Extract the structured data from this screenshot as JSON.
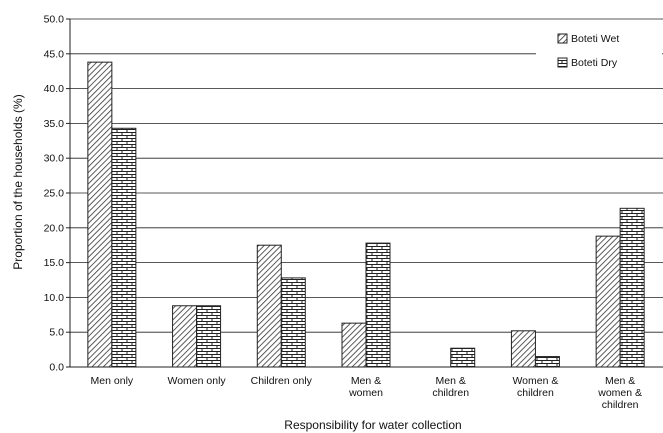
{
  "chart_data": {
    "type": "bar",
    "xlabel": "Responsibility for water collection",
    "ylabel": "Proportion of the households (%)",
    "ylim": [
      0,
      50
    ],
    "y_ticks": [
      "0.0",
      "5.0",
      "10.0",
      "15.0",
      "20.0",
      "25.0",
      "30.0",
      "35.0",
      "40.0",
      "45.0",
      "50.0"
    ],
    "grid": "horizontal",
    "legend_position": "top-right",
    "categories": [
      [
        "Men only"
      ],
      [
        "Women only"
      ],
      [
        "Children only"
      ],
      [
        "Men &",
        "women"
      ],
      [
        "Men &",
        "children"
      ],
      [
        "Women &",
        "children"
      ],
      [
        "Men &",
        "women &",
        "children"
      ]
    ],
    "series": [
      {
        "name": "Boteti Wet",
        "pattern": "diagonal-hatch",
        "values": [
          43.8,
          8.8,
          17.5,
          6.3,
          0.0,
          5.2,
          18.8
        ]
      },
      {
        "name": "Boteti Dry",
        "pattern": "brick",
        "values": [
          34.3,
          8.8,
          12.8,
          17.8,
          2.7,
          1.5,
          22.8
        ]
      }
    ]
  }
}
